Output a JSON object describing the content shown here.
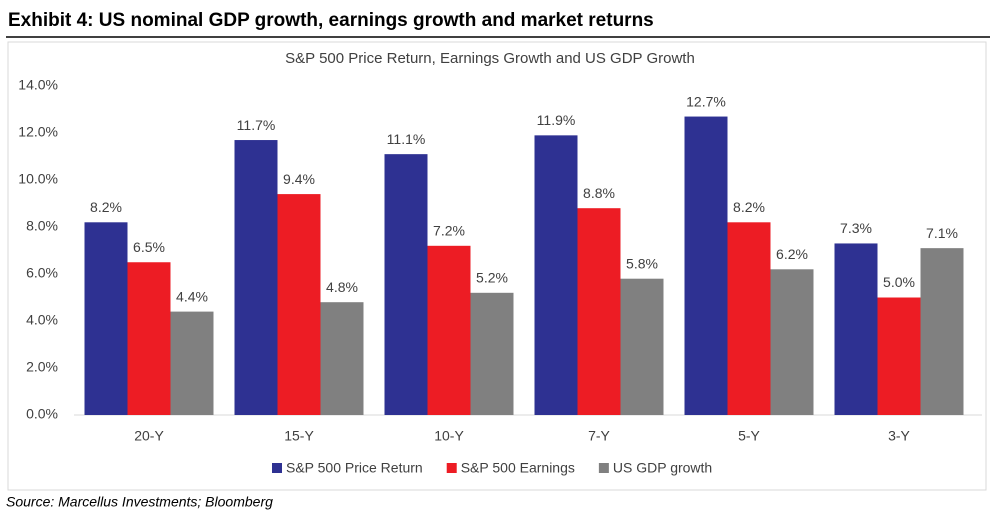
{
  "header": {
    "title": "Exhibit 4: US nominal GDP growth, earnings growth and market returns"
  },
  "source": "Source: Marcellus Investments; Bloomberg",
  "chart_data": {
    "type": "bar",
    "title": "S&P 500 Price Return, Earnings Growth and US GDP Growth",
    "categories": [
      "20-Y",
      "15-Y",
      "10-Y",
      "7-Y",
      "5-Y",
      "3-Y"
    ],
    "series": [
      {
        "name": "S&P 500 Price Return",
        "color": "#2e3192",
        "values": [
          8.2,
          11.7,
          11.1,
          11.9,
          12.7,
          7.3
        ],
        "value_labels": [
          "8.2%",
          "11.7%",
          "11.1%",
          "11.9%",
          "12.7%",
          "7.3%"
        ]
      },
      {
        "name": "S&P 500 Earnings",
        "color": "#ed1c24",
        "values": [
          6.5,
          9.4,
          7.2,
          8.8,
          8.2,
          5.0
        ],
        "value_labels": [
          "6.5%",
          "9.4%",
          "7.2%",
          "8.8%",
          "8.2%",
          "5.0%"
        ]
      },
      {
        "name": "US GDP growth",
        "color": "#808080",
        "values": [
          4.4,
          4.8,
          5.2,
          5.8,
          6.2,
          7.1
        ],
        "value_labels": [
          "4.4%",
          "4.8%",
          "5.2%",
          "5.8%",
          "6.2%",
          "7.1%"
        ]
      }
    ],
    "ylim": [
      0,
      14
    ],
    "yticks": [
      {
        "value": 0,
        "label": "0.0%"
      },
      {
        "value": 2,
        "label": "2.0%"
      },
      {
        "value": 4,
        "label": "4.0%"
      },
      {
        "value": 6,
        "label": "6.0%"
      },
      {
        "value": 8,
        "label": "8.0%"
      },
      {
        "value": 10,
        "label": "10.0%"
      },
      {
        "value": 12,
        "label": "12.0%"
      },
      {
        "value": 14,
        "label": "14.0%"
      }
    ],
    "grid": false,
    "legend": "bottom"
  }
}
